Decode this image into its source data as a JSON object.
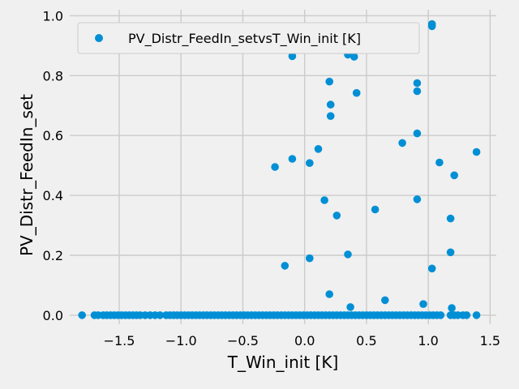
{
  "chart_data": {
    "type": "scatter",
    "xlabel": "T_Win_init [K]",
    "ylabel": "PV_Distr_FeedIn_set",
    "xlim": [
      -1.9,
      1.55
    ],
    "ylim": [
      -0.03,
      1.02
    ],
    "xticks": [
      -1.5,
      -1.0,
      -0.5,
      0.0,
      0.5,
      1.0,
      1.5
    ],
    "xtick_labels": [
      "−1.5",
      "−1.0",
      "−0.5",
      "0.0",
      "0.5",
      "1.0",
      "1.5"
    ],
    "yticks": [
      0.0,
      0.2,
      0.4,
      0.6,
      0.8,
      1.0
    ],
    "ytick_labels": [
      "0.0",
      "0.2",
      "0.4",
      "0.6",
      "0.8",
      "1.0"
    ],
    "grid": true,
    "legend_position": "top-left",
    "colors": {
      "series": "#008fd5",
      "background": "#f0f0f0",
      "grid": "#cbcbcb"
    },
    "series": [
      {
        "name": "PV_Distr_FeedIn_setvsT_Win_init [K]",
        "points": [
          [
            -0.1,
            0.865
          ],
          [
            0.35,
            0.87
          ],
          [
            0.4,
            0.863
          ],
          [
            1.03,
            0.972
          ],
          [
            1.03,
            0.965
          ],
          [
            0.2,
            0.78
          ],
          [
            0.42,
            0.742
          ],
          [
            0.91,
            0.775
          ],
          [
            0.91,
            0.748
          ],
          [
            0.21,
            0.703
          ],
          [
            0.21,
            0.665
          ],
          [
            0.91,
            0.607
          ],
          [
            0.79,
            0.575
          ],
          [
            0.11,
            0.555
          ],
          [
            1.39,
            0.545
          ],
          [
            -0.1,
            0.522
          ],
          [
            0.04,
            0.508
          ],
          [
            1.09,
            0.51
          ],
          [
            -0.24,
            0.495
          ],
          [
            1.21,
            0.467
          ],
          [
            0.91,
            0.387
          ],
          [
            0.16,
            0.384
          ],
          [
            0.57,
            0.353
          ],
          [
            0.26,
            0.333
          ],
          [
            1.18,
            0.323
          ],
          [
            1.18,
            0.21
          ],
          [
            0.35,
            0.203
          ],
          [
            0.04,
            0.19
          ],
          [
            -0.16,
            0.165
          ],
          [
            1.03,
            0.156
          ],
          [
            0.2,
            0.07
          ],
          [
            0.65,
            0.05
          ],
          [
            0.96,
            0.037
          ],
          [
            0.37,
            0.027
          ],
          [
            1.19,
            0.024
          ],
          [
            -1.8,
            0.0
          ],
          [
            -1.7,
            0.0
          ],
          [
            -1.67,
            0.0
          ],
          [
            -1.63,
            0.0
          ],
          [
            -1.6,
            0.0
          ],
          [
            -1.57,
            0.0
          ],
          [
            -1.54,
            0.0
          ],
          [
            -1.51,
            0.0
          ],
          [
            -1.48,
            0.0
          ],
          [
            -1.45,
            0.0
          ],
          [
            -1.42,
            0.0
          ],
          [
            -1.39,
            0.0
          ],
          [
            -1.36,
            0.0
          ],
          [
            -1.33,
            0.0
          ],
          [
            -1.29,
            0.0
          ],
          [
            -1.25,
            0.0
          ],
          [
            -1.21,
            0.0
          ],
          [
            -1.17,
            0.0
          ],
          [
            -1.12,
            0.0
          ],
          [
            -1.09,
            0.0
          ],
          [
            -1.06,
            0.0
          ],
          [
            -1.03,
            0.0
          ],
          [
            -1.0,
            0.0
          ],
          [
            -0.97,
            0.0
          ],
          [
            -0.94,
            0.0
          ],
          [
            -0.91,
            0.0
          ],
          [
            -0.88,
            0.0
          ],
          [
            -0.85,
            0.0
          ],
          [
            -0.82,
            0.0
          ],
          [
            -0.79,
            0.0
          ],
          [
            -0.76,
            0.0
          ],
          [
            -0.73,
            0.0
          ],
          [
            -0.7,
            0.0
          ],
          [
            -0.67,
            0.0
          ],
          [
            -0.64,
            0.0
          ],
          [
            -0.61,
            0.0
          ],
          [
            -0.58,
            0.0
          ],
          [
            -0.55,
            0.0
          ],
          [
            -0.52,
            0.0
          ],
          [
            -0.49,
            0.0
          ],
          [
            -0.46,
            0.0
          ],
          [
            -0.43,
            0.0
          ],
          [
            -0.4,
            0.0
          ],
          [
            -0.37,
            0.0
          ],
          [
            -0.34,
            0.0
          ],
          [
            -0.31,
            0.0
          ],
          [
            -0.28,
            0.0
          ],
          [
            -0.25,
            0.0
          ],
          [
            -0.22,
            0.0
          ],
          [
            -0.19,
            0.0
          ],
          [
            -0.16,
            0.0
          ],
          [
            -0.13,
            0.0
          ],
          [
            -0.1,
            0.0
          ],
          [
            -0.07,
            0.0
          ],
          [
            -0.04,
            0.0
          ],
          [
            -0.01,
            0.0
          ],
          [
            0.02,
            0.0
          ],
          [
            0.05,
            0.0
          ],
          [
            0.08,
            0.0
          ],
          [
            0.11,
            0.0
          ],
          [
            0.14,
            0.0
          ],
          [
            0.17,
            0.0
          ],
          [
            0.2,
            0.0
          ],
          [
            0.23,
            0.0
          ],
          [
            0.26,
            0.0
          ],
          [
            0.29,
            0.0
          ],
          [
            0.32,
            0.0
          ],
          [
            0.35,
            0.0
          ],
          [
            0.38,
            0.0
          ],
          [
            0.41,
            0.0
          ],
          [
            0.44,
            0.0
          ],
          [
            0.47,
            0.0
          ],
          [
            0.5,
            0.0
          ],
          [
            0.53,
            0.0
          ],
          [
            0.56,
            0.0
          ],
          [
            0.59,
            0.0
          ],
          [
            0.62,
            0.0
          ],
          [
            0.65,
            0.0
          ],
          [
            0.68,
            0.0
          ],
          [
            0.71,
            0.0
          ],
          [
            0.74,
            0.0
          ],
          [
            0.77,
            0.0
          ],
          [
            0.8,
            0.0
          ],
          [
            0.83,
            0.0
          ],
          [
            0.86,
            0.0
          ],
          [
            0.89,
            0.0
          ],
          [
            0.92,
            0.0
          ],
          [
            0.95,
            0.0
          ],
          [
            0.98,
            0.0
          ],
          [
            1.01,
            0.0
          ],
          [
            1.04,
            0.0
          ],
          [
            1.07,
            0.0
          ],
          [
            1.1,
            0.0
          ],
          [
            1.18,
            0.0
          ],
          [
            1.21,
            0.0
          ],
          [
            1.24,
            0.0
          ],
          [
            1.28,
            0.0
          ],
          [
            1.31,
            0.0
          ],
          [
            1.39,
            0.0
          ]
        ]
      }
    ]
  }
}
